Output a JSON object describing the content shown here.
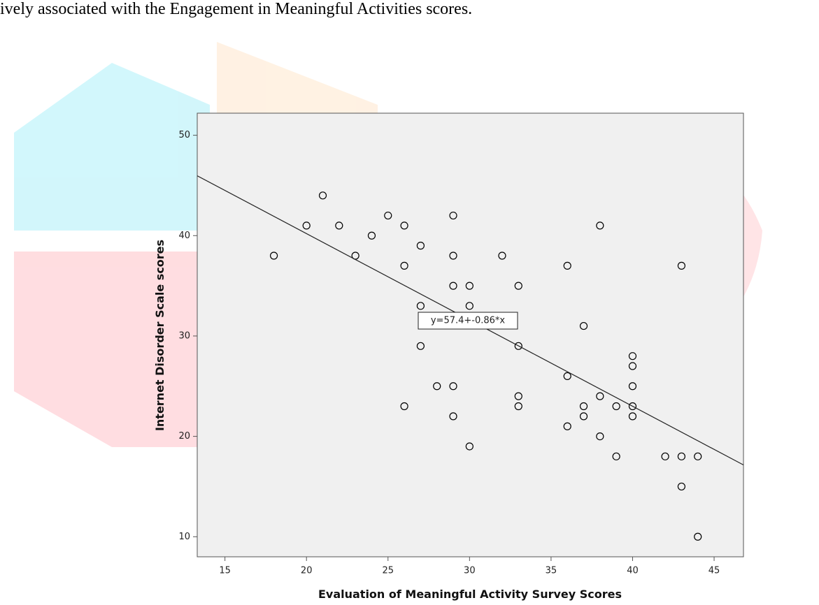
{
  "document": {
    "text": "ively associated with the Engagement in Meaningful Activities scores."
  },
  "chart_data": {
    "type": "scatter",
    "x_label": "Evaluation of Meaningful Activity Survey Scores",
    "y_label": "Internet Disorder Scale scores",
    "x": [
      18,
      20,
      21,
      22,
      23,
      24,
      25,
      26,
      26,
      27,
      29,
      29,
      32,
      29,
      30,
      33,
      27,
      30,
      38,
      36,
      43,
      37,
      27,
      33,
      40,
      40,
      36,
      28,
      29,
      40,
      33,
      38,
      26,
      33,
      37,
      39,
      40,
      29,
      37,
      40,
      36,
      38,
      30,
      39,
      42,
      43,
      44,
      43,
      44
    ],
    "values": [
      38,
      41,
      44,
      41,
      38,
      40,
      42,
      41,
      37,
      39,
      42,
      38,
      38,
      35,
      35,
      35,
      33,
      33,
      41,
      37,
      37,
      31,
      29,
      29,
      28,
      27,
      26,
      25,
      25,
      25,
      24,
      24,
      23,
      23,
      23,
      23,
      23,
      22,
      22,
      22,
      21,
      20,
      19,
      18,
      18,
      18,
      18,
      15,
      10
    ],
    "color": "#000000",
    "xlim": [
      13.3,
      46.8
    ],
    "ylim": [
      8,
      52.2
    ],
    "xticks": [
      15,
      20,
      25,
      30,
      35,
      40,
      45
    ],
    "yticks": [
      10,
      20,
      30,
      40,
      50
    ],
    "fit": {
      "intercept": 57.4,
      "slope": -0.86,
      "label": "y=57.4+-0.86*x"
    },
    "background": "#f0f0f0"
  }
}
